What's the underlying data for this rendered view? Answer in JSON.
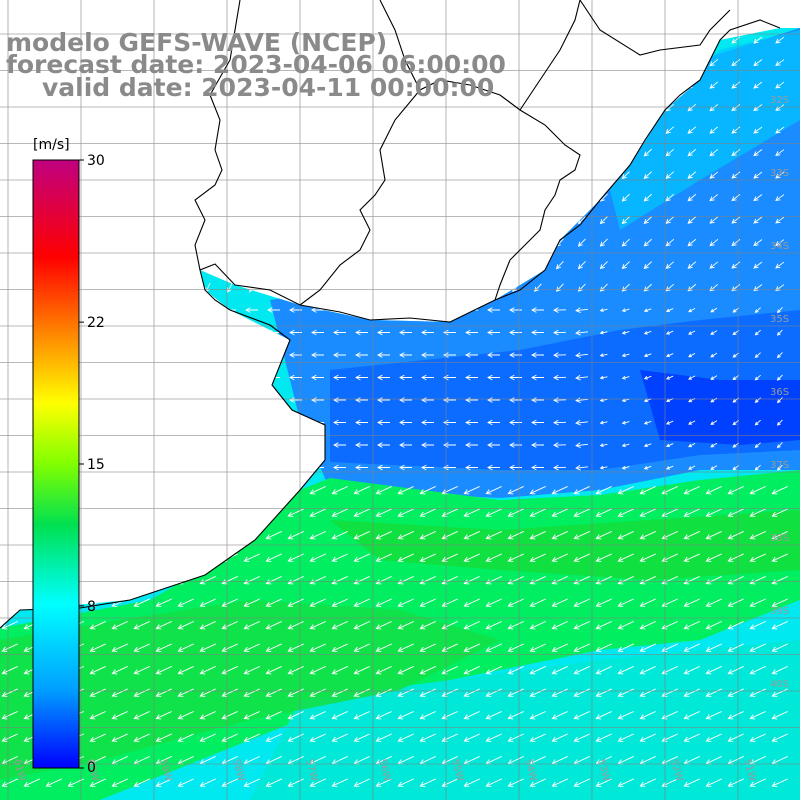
{
  "title": {
    "line1": "modelo GEFS-WAVE (NCEP)",
    "line2": "forecast date: 2023-04-06 06:00:00",
    "line3": "valid date: 2023-04-11 00:00:00"
  },
  "colorbar": {
    "unit": "[m/s]",
    "ticks": [
      "30",
      "22",
      "15",
      "8",
      "0"
    ],
    "tick_values": [
      30,
      22,
      15,
      8,
      0
    ],
    "range": [
      0,
      30
    ]
  },
  "grid": {
    "lat_labels": [
      "32S",
      "33S",
      "34S",
      "35S",
      "36S",
      "37S",
      "38S",
      "39S",
      "40S"
    ],
    "lon_labels": [
      "61W",
      "60W",
      "59W",
      "58W",
      "57W",
      "56W",
      "55W",
      "54W",
      "53W",
      "52W",
      "51W"
    ]
  },
  "colors": {
    "land": "#ffffff",
    "coastline": "#000000",
    "gridline": "#808080",
    "arrow": "#ffffff",
    "title_text": "#8a8a8a"
  }
}
